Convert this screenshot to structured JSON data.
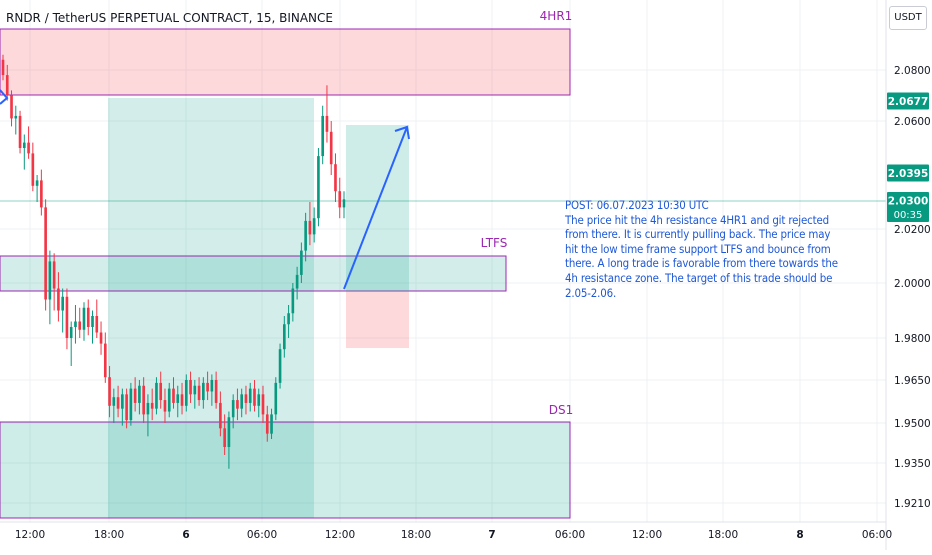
{
  "header": {
    "symbol_title": "RNDR / TetherUS PERPETUAL CONTRACT, 15, BINANCE",
    "currency": "USDT"
  },
  "chart_data": {
    "type": "candlestick",
    "symbol": "RNDR / TetherUS PERPETUAL CONTRACT, 15, BINANCE",
    "x_tick_labels": [
      "12:00",
      "18:00",
      "6",
      "06:00",
      "12:00",
      "18:00",
      "7",
      "06:00",
      "12:00",
      "18:00",
      "8",
      "06:00"
    ],
    "y_tick_labels": [
      "2.0800",
      "2.0600",
      "2.0200",
      "2.0000",
      "1.9800",
      "1.9650",
      "1.9500",
      "1.9350",
      "1.9210"
    ],
    "price_badges": [
      {
        "value": "2.0677",
        "color": "#089981"
      },
      {
        "value": "2.0395",
        "color": "#089981"
      },
      {
        "value": "2.0300",
        "sub": "00:35",
        "color": "#089981"
      }
    ],
    "zones": [
      {
        "label": "4HR1",
        "color": "#f7525f",
        "label_color": "#9c27b0"
      },
      {
        "label": "LTFS",
        "color": "#22ab94",
        "label_color": "#9c27b0"
      },
      {
        "label": "DS1",
        "color": "#22ab94",
        "label_color": "#9c27b0"
      }
    ],
    "candles": [
      [
        2.084,
        2.086,
        2.076,
        2.078
      ],
      [
        2.078,
        2.082,
        2.068,
        2.07
      ],
      [
        2.07,
        2.072,
        2.058,
        2.061
      ],
      [
        2.061,
        2.066,
        2.055,
        2.062
      ],
      [
        2.062,
        2.064,
        2.048,
        2.05
      ],
      [
        2.05,
        2.055,
        2.042,
        2.052
      ],
      [
        2.052,
        2.058,
        2.046,
        2.048
      ],
      [
        2.048,
        2.052,
        2.034,
        2.036
      ],
      [
        2.036,
        2.04,
        2.03,
        2.038
      ],
      [
        2.038,
        2.042,
        2.025,
        2.028
      ],
      [
        2.028,
        2.031,
        1.99,
        1.994
      ],
      [
        1.994,
        2.012,
        1.985,
        2.008
      ],
      [
        2.008,
        2.011,
        1.99,
        1.998
      ],
      [
        1.998,
        2.004,
        1.986,
        1.99
      ],
      [
        1.99,
        1.998,
        1.982,
        1.995
      ],
      [
        1.995,
        1.998,
        1.976,
        1.98
      ],
      [
        1.98,
        1.986,
        1.97,
        1.984
      ],
      [
        1.984,
        1.992,
        1.978,
        1.986
      ],
      [
        1.986,
        1.991,
        1.98,
        1.983
      ],
      [
        1.983,
        1.993,
        1.979,
        1.991
      ],
      [
        1.991,
        1.994,
        1.981,
        1.984
      ],
      [
        1.984,
        1.99,
        1.978,
        1.988
      ],
      [
        1.988,
        1.994,
        1.98,
        1.982
      ],
      [
        1.982,
        1.986,
        1.974,
        1.978
      ],
      [
        1.978,
        1.982,
        1.964,
        1.966
      ],
      [
        1.966,
        1.97,
        1.952,
        1.956
      ],
      [
        1.956,
        1.962,
        1.95,
        1.959
      ],
      [
        1.959,
        1.963,
        1.952,
        1.955
      ],
      [
        1.955,
        1.962,
        1.949,
        1.96
      ],
      [
        1.96,
        1.962,
        1.948,
        1.951
      ],
      [
        1.951,
        1.964,
        1.949,
        1.962
      ],
      [
        1.962,
        1.966,
        1.954,
        1.957
      ],
      [
        1.957,
        1.965,
        1.953,
        1.963
      ],
      [
        1.963,
        1.966,
        1.95,
        1.953
      ],
      [
        1.953,
        1.96,
        1.945,
        1.957
      ],
      [
        1.957,
        1.962,
        1.951,
        1.955
      ],
      [
        1.955,
        1.966,
        1.953,
        1.964
      ],
      [
        1.964,
        1.968,
        1.955,
        1.958
      ],
      [
        1.958,
        1.962,
        1.95,
        1.954
      ],
      [
        1.954,
        1.964,
        1.952,
        1.962
      ],
      [
        1.962,
        1.966,
        1.955,
        1.957
      ],
      [
        1.957,
        1.963,
        1.952,
        1.96
      ],
      [
        1.96,
        1.964,
        1.953,
        1.956
      ],
      [
        1.956,
        1.967,
        1.954,
        1.965
      ],
      [
        1.965,
        1.968,
        1.957,
        1.96
      ],
      [
        1.96,
        1.965,
        1.955,
        1.963
      ],
      [
        1.963,
        1.966,
        1.956,
        1.958
      ],
      [
        1.958,
        1.966,
        1.955,
        1.964
      ],
      [
        1.964,
        1.968,
        1.958,
        1.961
      ],
      [
        1.961,
        1.967,
        1.956,
        1.965
      ],
      [
        1.965,
        1.968,
        1.955,
        1.957
      ],
      [
        1.957,
        1.961,
        1.945,
        1.948
      ],
      [
        1.948,
        1.953,
        1.938,
        1.941
      ],
      [
        1.941,
        1.954,
        1.933,
        1.952
      ],
      [
        1.952,
        1.96,
        1.948,
        1.958
      ],
      [
        1.958,
        1.962,
        1.951,
        1.955
      ],
      [
        1.955,
        1.962,
        1.952,
        1.96
      ],
      [
        1.96,
        1.963,
        1.953,
        1.957
      ],
      [
        1.957,
        1.964,
        1.954,
        1.962
      ],
      [
        1.962,
        1.965,
        1.954,
        1.956
      ],
      [
        1.956,
        1.962,
        1.952,
        1.96
      ],
      [
        1.96,
        1.963,
        1.95,
        1.953
      ],
      [
        1.953,
        1.956,
        1.943,
        1.946
      ],
      [
        1.946,
        1.955,
        1.944,
        1.953
      ],
      [
        1.953,
        1.966,
        1.951,
        1.964
      ],
      [
        1.964,
        1.978,
        1.962,
        1.976
      ],
      [
        1.976,
        1.988,
        1.973,
        1.985
      ],
      [
        1.985,
        1.992,
        1.98,
        1.989
      ],
      [
        1.989,
        2.0,
        1.986,
        1.998
      ],
      [
        1.998,
        2.006,
        1.994,
        2.003
      ],
      [
        2.003,
        2.015,
        2.0,
        2.012
      ],
      [
        2.012,
        2.026,
        2.008,
        2.023
      ],
      [
        2.023,
        2.03,
        2.014,
        2.018
      ],
      [
        2.018,
        2.028,
        2.015,
        2.024
      ],
      [
        2.024,
        2.05,
        2.021,
        2.047
      ],
      [
        2.047,
        2.066,
        2.044,
        2.062
      ],
      [
        2.062,
        2.074,
        2.052,
        2.056
      ],
      [
        2.056,
        2.06,
        2.04,
        2.044
      ],
      [
        2.044,
        2.048,
        2.03,
        2.034
      ],
      [
        2.034,
        2.039,
        2.024,
        2.028
      ],
      [
        2.028,
        2.034,
        2.024,
        2.031
      ]
    ]
  },
  "annotation": {
    "lines": [
      "POST: 06.07.2023 10:30 UTC",
      "The price hit the 4h resistance 4HR1 and git rejected",
      "from there. It is currently pulling back. The price may",
      "hit the low time frame support LTFS and bounce from",
      "there. A long trade is favorable from there towards the",
      "4h resistance zone. The target of this trade should be",
      "2.05-2.06."
    ]
  }
}
